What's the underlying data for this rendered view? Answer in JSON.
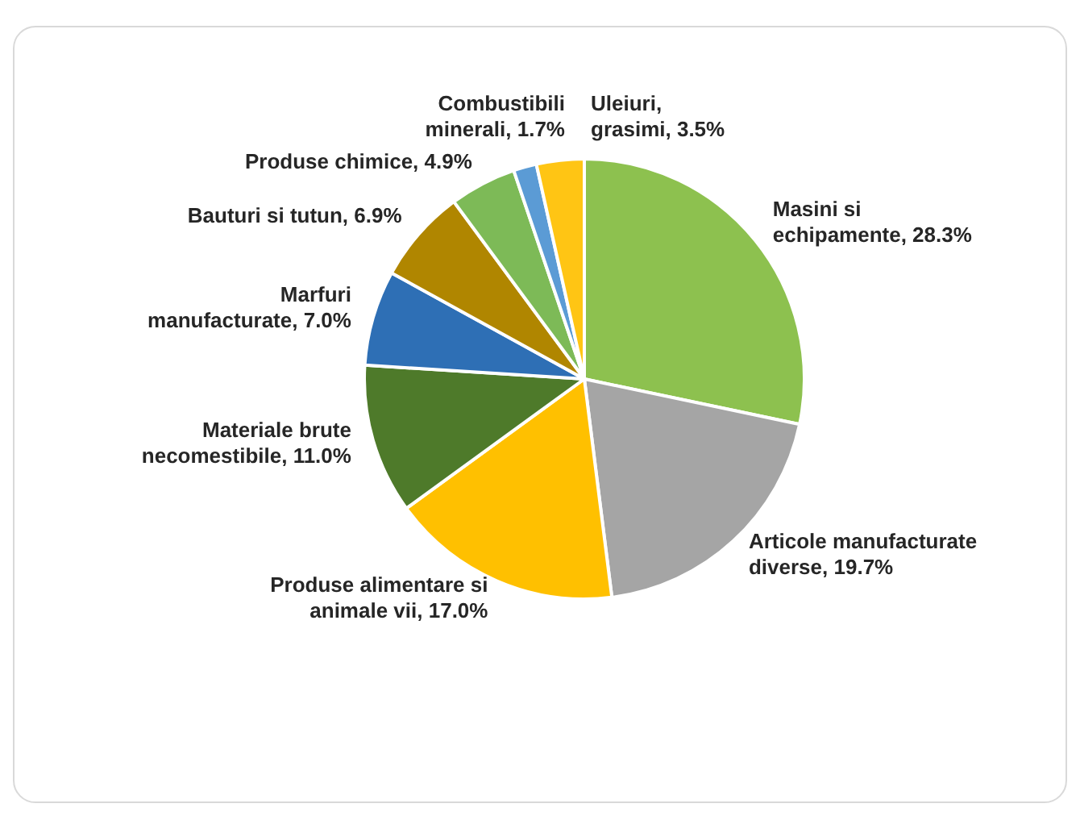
{
  "chart_data": {
    "type": "pie",
    "categories": [
      "Masini si echipamente",
      "Articole manufacturate diverse",
      "Produse alimentare si animale vii",
      "Materiale brute necomestibile",
      "Marfuri manufacturate",
      "Bauturi si tutun",
      "Produse chimice",
      "Combustibili minerali",
      "Uleiuri, grasimi"
    ],
    "values": [
      28.3,
      19.7,
      17.0,
      11.0,
      7.0,
      6.9,
      4.9,
      1.7,
      3.5
    ],
    "value_labels": [
      "28.3%",
      "19.7%",
      "17.0%",
      "11.0%",
      "7.0%",
      "6.9%",
      "4.9%",
      "1.7%",
      "3.5%"
    ],
    "colors": [
      "#8dc14f",
      "#a5a5a5",
      "#ffc000",
      "#4e7a2a",
      "#2e6fb5",
      "#b08600",
      "#7dba57",
      "#5b9bd5",
      "#ffc514"
    ],
    "legend": false
  }
}
